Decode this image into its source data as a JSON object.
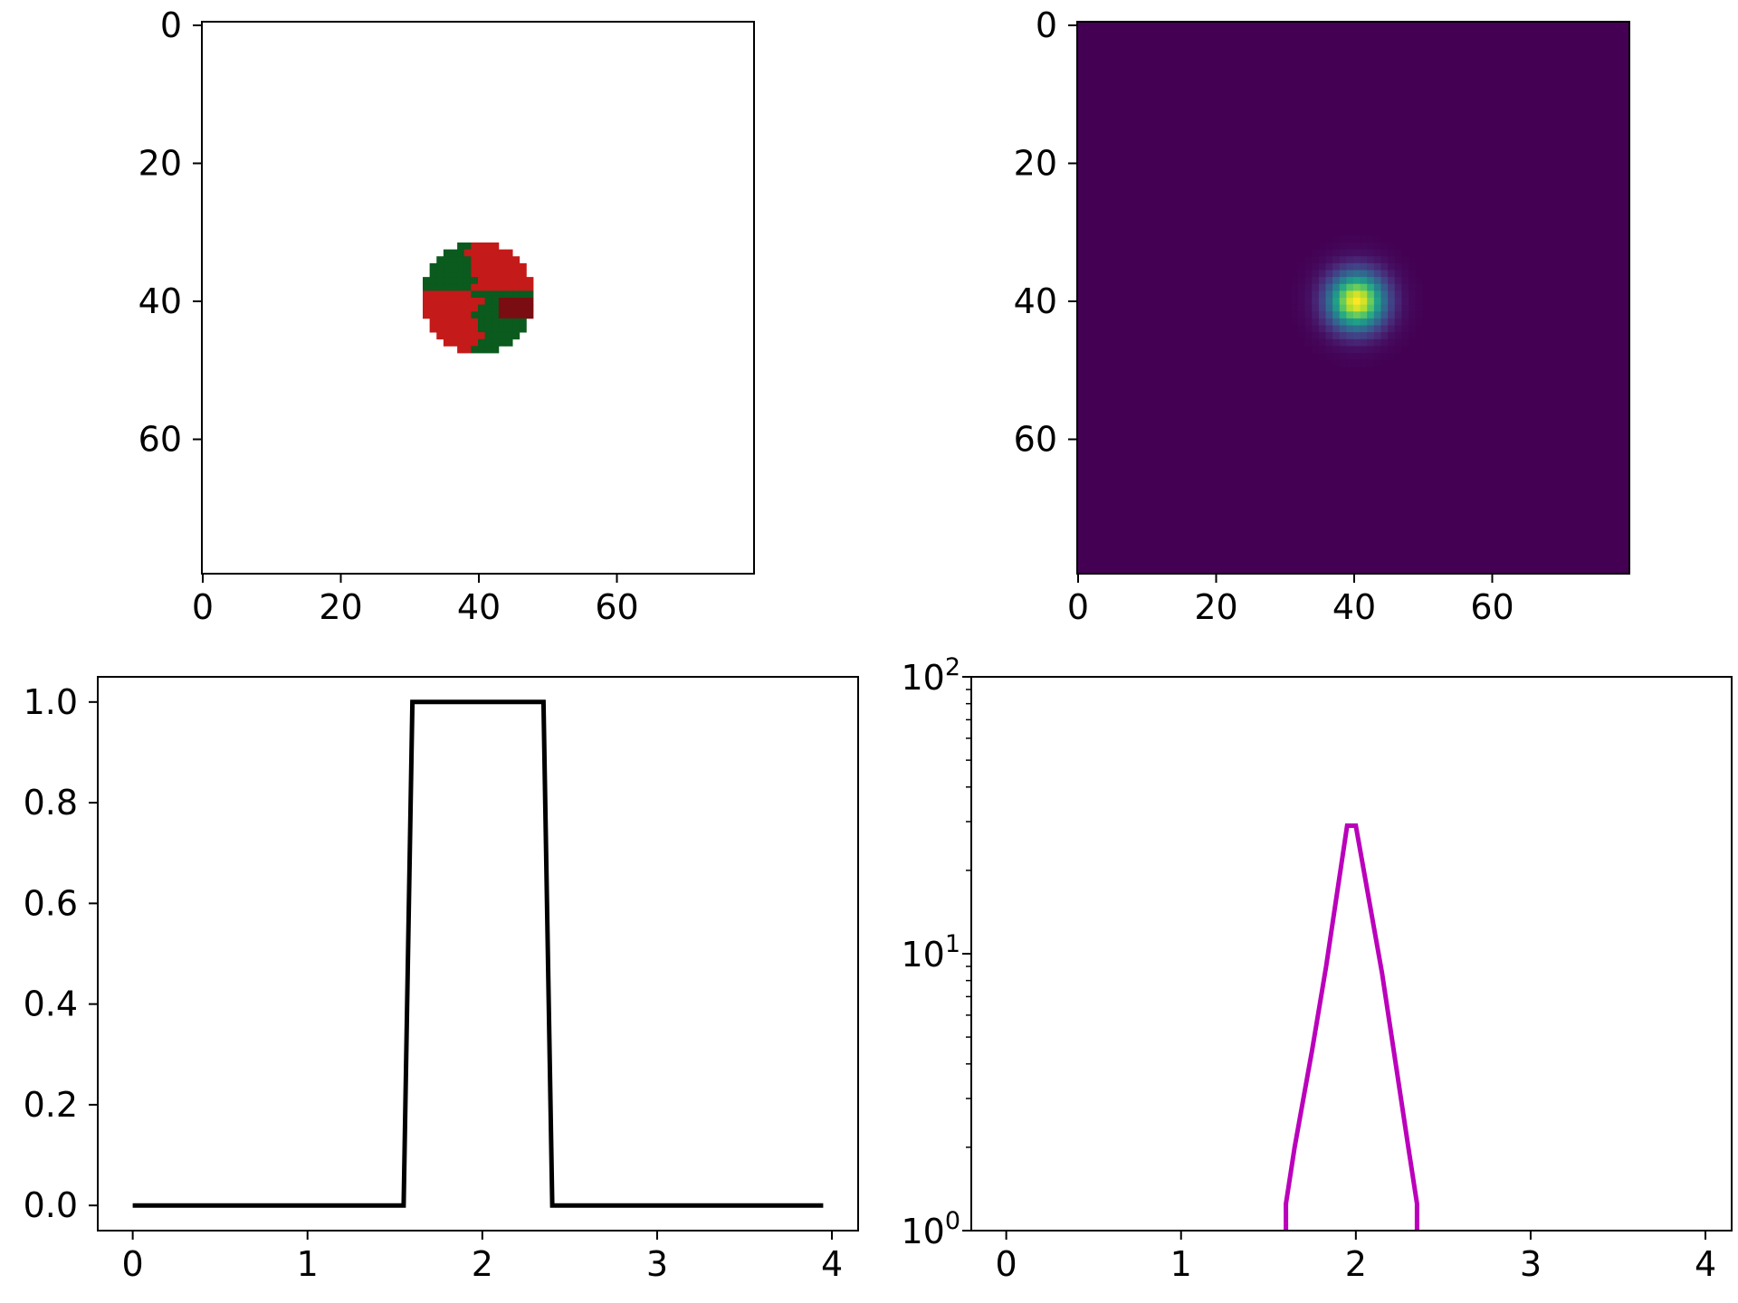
{
  "chart_data": [
    {
      "type": "heatmap",
      "position": "top-left",
      "description_colors": {
        "background": "#ffffff",
        "dark_green": "#0b5a1e",
        "red": "#c41a1a",
        "dark_red": "#7a0d12"
      },
      "image_size": [
        80,
        80
      ],
      "xlim": [
        0,
        80
      ],
      "ylim": [
        80,
        0
      ],
      "xticks": [
        "0",
        "20",
        "40",
        "60"
      ],
      "yticks": [
        "0",
        "20",
        "40",
        "60"
      ],
      "disk": {
        "center": [
          40,
          40
        ],
        "radius": 8
      },
      "regions": [
        {
          "label": "green",
          "color": "#0b5a1e",
          "quadrant": "upper-left"
        },
        {
          "label": "red",
          "color": "#c41a1a",
          "quadrant": "upper-right"
        },
        {
          "label": "red",
          "color": "#c41a1a",
          "quadrant": "lower-left"
        },
        {
          "label": "green",
          "color": "#0b5a1e",
          "quadrant": "lower-right"
        },
        {
          "label": "dark-red",
          "color": "#7a0d12",
          "quadrant": "right-middle"
        }
      ]
    },
    {
      "type": "heatmap",
      "position": "top-right",
      "colormap": "viridis",
      "image_size": [
        80,
        80
      ],
      "xlim": [
        0,
        80
      ],
      "ylim": [
        80,
        0
      ],
      "xticks": [
        "0",
        "20",
        "40",
        "60"
      ],
      "yticks": [
        "0",
        "20",
        "40",
        "60"
      ],
      "peak": {
        "center": [
          40,
          40
        ],
        "sigma": 2.8
      }
    },
    {
      "type": "line",
      "position": "bottom-left",
      "color": "#000000",
      "x": [
        0,
        1.55,
        1.6,
        2.35,
        2.4,
        3.95
      ],
      "y": [
        0,
        0,
        1,
        1,
        0,
        0
      ],
      "xlim": [
        -0.2,
        4.15
      ],
      "ylim": [
        -0.05,
        1.05
      ],
      "xticks": [
        "0",
        "1",
        "2",
        "3",
        "4"
      ],
      "yticks": [
        "0.0",
        "0.2",
        "0.4",
        "0.6",
        "0.8",
        "1.0"
      ],
      "xlabel": "",
      "ylabel": ""
    },
    {
      "type": "line",
      "position": "bottom-right",
      "color": "#bb00bb",
      "yscale": "log",
      "x": [
        1.6,
        1.6,
        1.65,
        1.75,
        1.83,
        1.95,
        2.0,
        2.15,
        2.3,
        2.35,
        2.35
      ],
      "y": [
        1,
        1.25,
        2,
        4.5,
        9,
        29,
        29,
        8.5,
        2,
        1.25,
        1
      ],
      "xlim": [
        -0.2,
        4.15
      ],
      "ylim": [
        1,
        100
      ],
      "xticks": [
        "0",
        "1",
        "2",
        "3",
        "4"
      ],
      "ytick_bases": [
        "10",
        "10",
        "10"
      ],
      "ytick_exponents": [
        "0",
        "1",
        "2"
      ],
      "xlabel": "",
      "ylabel": ""
    }
  ]
}
